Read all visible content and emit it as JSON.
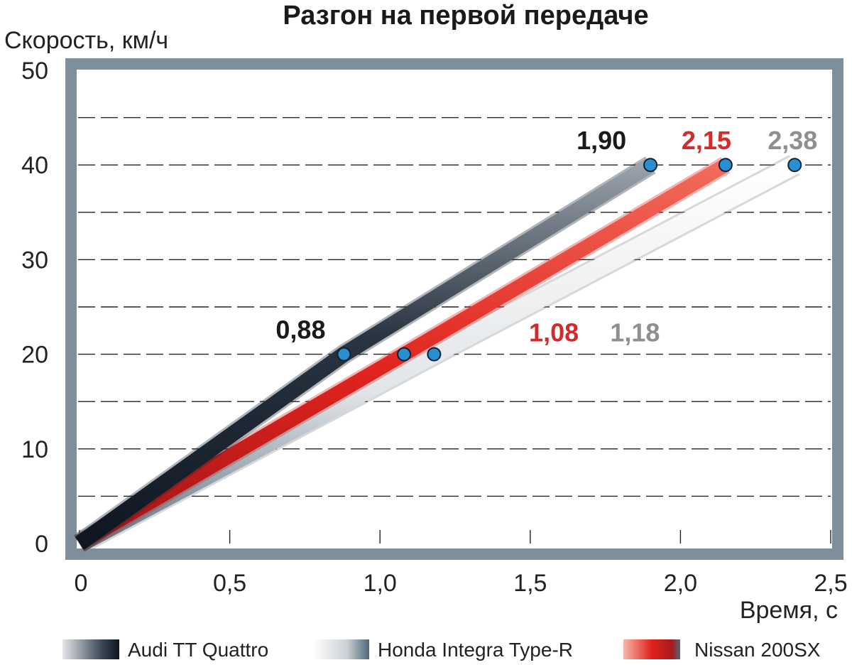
{
  "chart_data": {
    "type": "line",
    "title": "Разгон на первой передаче",
    "xlabel": "Время, с",
    "ylabel": "Скорость, км/ч",
    "xlim": [
      0,
      2.5
    ],
    "ylim": [
      0,
      50
    ],
    "x_ticks": [
      "0",
      "0,5",
      "1,0",
      "1,5",
      "2,0",
      "2,5"
    ],
    "y_ticks": [
      "0",
      "10",
      "20",
      "30",
      "40",
      "50"
    ],
    "grid": "horizontal dashed",
    "legend_position": "bottom",
    "series": [
      {
        "name": "Audi TT Quattro",
        "color": "#1f2a36",
        "points": [
          [
            0,
            0
          ],
          [
            0.88,
            20
          ],
          [
            1.9,
            40
          ]
        ],
        "labels": [
          {
            "text": "0,88",
            "x": 0.88,
            "y": 20
          },
          {
            "text": "1,90",
            "x": 1.9,
            "y": 40
          }
        ]
      },
      {
        "name": "Honda Integra Type-R",
        "color": "#8a8f94",
        "points": [
          [
            0,
            0
          ],
          [
            1.18,
            20
          ],
          [
            2.38,
            40
          ]
        ],
        "labels": [
          {
            "text": "1,18",
            "x": 1.18,
            "y": 20
          },
          {
            "text": "2,38",
            "x": 2.38,
            "y": 40
          }
        ]
      },
      {
        "name": "Nissan 200SX",
        "color": "#d42a2a",
        "points": [
          [
            0,
            0
          ],
          [
            1.08,
            20
          ],
          [
            2.15,
            40
          ]
        ],
        "labels": [
          {
            "text": "1,08",
            "x": 1.08,
            "y": 20
          },
          {
            "text": "2,15",
            "x": 2.15,
            "y": 40
          }
        ]
      }
    ],
    "colors": {
      "frame": "#7f8e9b",
      "marker": "#2a8fd0"
    }
  }
}
